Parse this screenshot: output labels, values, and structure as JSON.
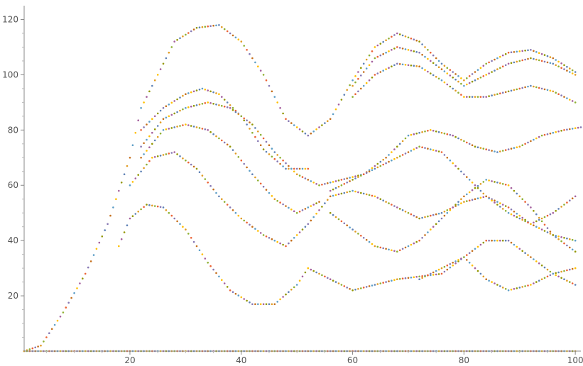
{
  "chart_data": {
    "type": "scatter",
    "title": "",
    "xlabel": "",
    "ylabel": "",
    "xlim": [
      1,
      101
    ],
    "ylim": [
      0,
      125
    ],
    "grid": false,
    "legend": "none",
    "x_ticks": [
      20,
      40,
      60,
      80,
      100
    ],
    "y_ticks": [
      20,
      40,
      60,
      80,
      100,
      120
    ],
    "x_tick_labels": [
      "20",
      "40",
      "60",
      "80",
      "100"
    ],
    "y_tick_labels": [
      "20",
      "40",
      "60",
      "80",
      "100",
      "120"
    ],
    "colors": [
      "#5E81B5",
      "#E19C24",
      "#8FB032",
      "#EB6235",
      "#8778B3",
      "#C56E1A",
      "#5D9EC7",
      "#FFBF00",
      "#A5609D",
      "#929600"
    ],
    "series": [
      {
        "x": [
          1,
          4,
          8,
          12,
          16,
          20,
          22,
          25,
          28,
          32,
          36,
          40,
          44,
          48,
          52,
          56,
          60,
          64,
          68,
          72,
          76,
          80,
          84,
          88,
          92,
          96,
          100
        ],
        "y": [
          0,
          2,
          14,
          28,
          46,
          70,
          88,
          100,
          112,
          117,
          118,
          112,
          100,
          84,
          78,
          84,
          98,
          110,
          115,
          112,
          104,
          98,
          104,
          108,
          109,
          106,
          101
        ]
      },
      {
        "x": [
          60,
          64,
          68,
          72,
          76,
          80,
          84,
          88,
          92,
          96,
          100
        ],
        "y": [
          96,
          106,
          110,
          108,
          102,
          96,
          100,
          104,
          106,
          104,
          100
        ]
      },
      {
        "x": [
          60,
          64,
          68,
          72,
          76,
          80,
          84,
          88,
          92,
          96,
          100
        ],
        "y": [
          92,
          100,
          104,
          103,
          98,
          92,
          92,
          94,
          96,
          94,
          90
        ]
      },
      {
        "x": [
          22,
          26,
          30,
          33,
          36,
          40,
          44,
          48,
          52
        ],
        "y": [
          80,
          88,
          93,
          95,
          93,
          85,
          73,
          66,
          66
        ]
      },
      {
        "x": [
          22,
          26,
          30,
          34,
          38,
          42,
          46,
          50,
          54,
          58,
          62,
          66,
          70,
          74,
          78,
          82,
          86,
          90,
          94,
          98,
          101
        ],
        "y": [
          74,
          84,
          88,
          90,
          88,
          82,
          72,
          64,
          60,
          62,
          64,
          70,
          78,
          80,
          78,
          74,
          72,
          74,
          78,
          80,
          81
        ]
      },
      {
        "x": [
          22,
          26,
          30,
          34,
          38,
          42,
          46,
          50,
          54
        ],
        "y": [
          70,
          80,
          82,
          80,
          74,
          64,
          55,
          50,
          54
        ]
      },
      {
        "x": [
          20,
          24,
          28,
          32,
          36,
          40,
          44,
          48,
          52,
          56,
          60,
          64,
          68,
          72,
          76,
          80,
          84,
          88,
          92,
          96,
          100
        ],
        "y": [
          60,
          70,
          72,
          66,
          56,
          48,
          42,
          38,
          46,
          56,
          58,
          56,
          52,
          48,
          50,
          54,
          56,
          52,
          46,
          42,
          40
        ]
      },
      {
        "x": [
          18,
          20,
          23,
          26,
          30,
          34,
          38,
          42,
          46,
          50,
          52,
          56,
          60,
          64,
          68,
          72,
          76,
          80,
          84,
          88,
          92,
          96,
          100
        ],
        "y": [
          38,
          48,
          53,
          52,
          44,
          32,
          22,
          17,
          17,
          24,
          30,
          26,
          22,
          24,
          26,
          27,
          28,
          34,
          26,
          22,
          24,
          28,
          30
        ]
      },
      {
        "x": [
          56,
          60,
          64,
          68,
          72,
          76,
          80,
          84,
          88,
          92,
          96,
          100
        ],
        "y": [
          58,
          62,
          66,
          70,
          74,
          72,
          64,
          56,
          50,
          46,
          50,
          56
        ]
      },
      {
        "x": [
          56,
          60,
          64,
          68,
          72,
          76,
          80,
          84,
          88,
          92,
          96,
          100
        ],
        "y": [
          50,
          44,
          38,
          36,
          40,
          48,
          56,
          62,
          60,
          52,
          42,
          36
        ]
      },
      {
        "x": [
          72,
          76,
          80,
          84,
          88,
          92,
          96,
          100
        ],
        "y": [
          26,
          30,
          34,
          40,
          40,
          34,
          28,
          24
        ]
      },
      {
        "x": [
          1,
          5,
          10,
          15,
          20,
          25,
          30,
          35,
          40,
          45,
          50,
          55,
          60,
          65,
          70,
          75,
          80,
          85,
          90,
          95,
          100
        ],
        "y": [
          0,
          0,
          0,
          0,
          0,
          0,
          0,
          0,
          0,
          0,
          0,
          0,
          0,
          0,
          0,
          0,
          0,
          0,
          0,
          0,
          0
        ]
      }
    ]
  }
}
